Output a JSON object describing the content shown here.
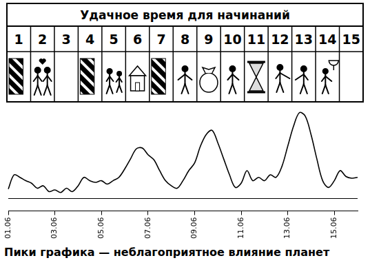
{
  "header": {
    "title": "Удачное время для начинаний",
    "days": [
      1,
      2,
      3,
      4,
      5,
      6,
      7,
      8,
      9,
      10,
      11,
      12,
      13,
      14,
      15
    ]
  },
  "chart_data": {
    "type": "line",
    "categories": [
      "01.06",
      null,
      null,
      null,
      null,
      null,
      null,
      null,
      "03.06",
      null,
      null,
      null,
      null,
      null,
      null,
      null,
      "05.06",
      null,
      null,
      null,
      null,
      null,
      null,
      null,
      "07.06",
      null,
      null,
      null,
      null,
      null,
      null,
      null,
      "09.06",
      null,
      null,
      null,
      null,
      null,
      null,
      null,
      "11.06",
      null,
      null,
      null,
      null,
      null,
      null,
      null,
      "13.06",
      null,
      null,
      null,
      null,
      null,
      null,
      null,
      "15.06",
      null,
      null,
      null,
      null
    ],
    "values": [
      11,
      28,
      25,
      21,
      18,
      12,
      15,
      8,
      10,
      7,
      12,
      8,
      15,
      25,
      21,
      19,
      21,
      17,
      21,
      25,
      35,
      47,
      59,
      60,
      52,
      46,
      33,
      21,
      15,
      12,
      21,
      33,
      42,
      62,
      76,
      81,
      66,
      47,
      28,
      13,
      18,
      33,
      21,
      25,
      21,
      28,
      25,
      38,
      62,
      86,
      102,
      98,
      76,
      47,
      21,
      13,
      21,
      33,
      26,
      24,
      25
    ],
    "color": "#000000",
    "ylim": [
      -15,
      110
    ],
    "yticks": [
      0
    ],
    "grid": true,
    "tick_labels": "x"
  },
  "caption": "Пики графика — неблагоприятное влияние планет"
}
